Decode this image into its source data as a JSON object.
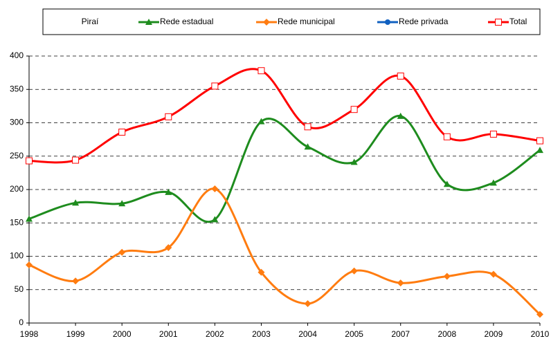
{
  "chart_data": {
    "type": "line",
    "legend_title": "Piraí",
    "categories": [
      "1998",
      "1999",
      "2000",
      "2001",
      "2002",
      "2003",
      "2004",
      "2005",
      "2007",
      "2008",
      "2009",
      "2010"
    ],
    "series": [
      {
        "name": "Rede estadual",
        "color": "#1e8c1e",
        "marker": "triangle",
        "values": [
          156,
          180,
          179,
          196,
          155,
          302,
          264,
          241,
          310,
          208,
          210,
          259
        ]
      },
      {
        "name": "Rede municipal",
        "color": "#ff7c10",
        "marker": "diamond",
        "values": [
          87,
          63,
          106,
          113,
          201,
          76,
          29,
          78,
          60,
          70,
          73,
          13
        ]
      },
      {
        "name": "Rede privada",
        "color": "#1060c0",
        "marker": "circle",
        "values": [
          null,
          null,
          null,
          null,
          null,
          null,
          null,
          null,
          null,
          null,
          null,
          null
        ]
      },
      {
        "name": "Total",
        "color": "#ff0000",
        "marker": "square-open",
        "values": [
          243,
          244,
          286,
          309,
          355,
          378,
          294,
          320,
          370,
          279,
          283,
          273
        ]
      }
    ],
    "ylim": [
      0,
      400
    ],
    "yticks": [
      0,
      50,
      100,
      150,
      200,
      250,
      300,
      350,
      400
    ],
    "grid": true,
    "smooth": true,
    "legend": "top"
  }
}
